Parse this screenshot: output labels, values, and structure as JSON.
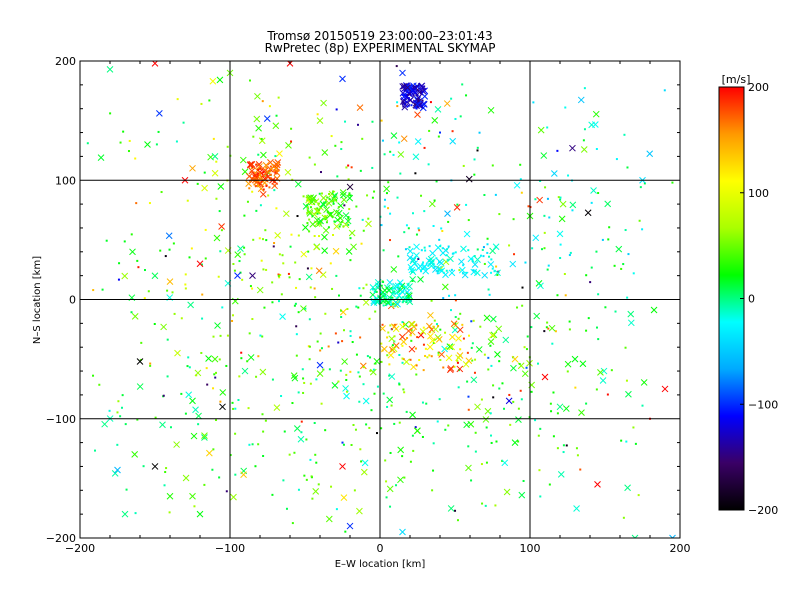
{
  "chart_data": {
    "type": "scatter",
    "title": "Tromsø 20150519 23:00:00–23:01:43",
    "subtitle": "RwPretec (8p) EXPERIMENTAL SKYMAP",
    "xlabel": "E–W location [km]",
    "ylabel": "N–S location [km]",
    "xlim": [
      -200,
      200
    ],
    "ylim": [
      -200,
      200
    ],
    "x_ticks": [
      "−200",
      "−100",
      "0",
      "100",
      "200"
    ],
    "y_ticks": [
      "−200",
      "−100",
      "0",
      "100",
      "200"
    ],
    "x_tick_values": [
      -200,
      -100,
      0,
      100,
      200
    ],
    "y_tick_values": [
      -200,
      -100,
      0,
      100,
      200
    ],
    "grid": true,
    "grid_values": [
      -100,
      0,
      100
    ],
    "marker_types": [
      "cross",
      "dot"
    ],
    "colorbar": {
      "label": "[m/s]",
      "range": [
        -200,
        200
      ],
      "tick_values": [
        -200,
        -100,
        0,
        100,
        200
      ],
      "tick_labels": [
        "−200",
        "−100",
        "0",
        "100",
        "200"
      ],
      "placement": "right",
      "colors": [
        "#000000",
        "#3a0066",
        "#0000ff",
        "#00aaff",
        "#00ffff",
        "#00ff00",
        "#aaff00",
        "#ffff00",
        "#ff9900",
        "#ff0000"
      ]
    },
    "clusters": [
      {
        "x": [
          -88,
          -68
        ],
        "y": [
          92,
          115
        ],
        "v": [
          150,
          200
        ]
      },
      {
        "x": [
          -5,
          20
        ],
        "y": [
          -5,
          15
        ],
        "v": [
          -40,
          20
        ]
      },
      {
        "x": [
          -50,
          -20
        ],
        "y": [
          60,
          90
        ],
        "v": [
          10,
          70
        ]
      },
      {
        "x": [
          15,
          30
        ],
        "y": [
          160,
          180
        ],
        "v": [
          -150,
          -100
        ]
      },
      {
        "x": [
          0,
          60
        ],
        "y": [
          -60,
          -20
        ],
        "v": [
          60,
          200
        ]
      },
      {
        "x": [
          20,
          80
        ],
        "y": [
          20,
          45
        ],
        "v": [
          -40,
          -10
        ]
      }
    ],
    "points": [
      {
        "x": -180,
        "y": 193,
        "v": 0,
        "m": "cross"
      },
      {
        "x": -150,
        "y": 198,
        "v": 200,
        "m": "cross"
      },
      {
        "x": -100,
        "y": 190,
        "v": 50,
        "m": "cross"
      },
      {
        "x": -60,
        "y": 198,
        "v": 200,
        "m": "cross"
      },
      {
        "x": -25,
        "y": 185,
        "v": -100,
        "m": "cross"
      },
      {
        "x": 15,
        "y": 190,
        "v": -100,
        "m": "cross"
      },
      {
        "x": 25,
        "y": 155,
        "v": 180,
        "m": "cross"
      },
      {
        "x": -155,
        "y": 130,
        "v": 20,
        "m": "cross"
      },
      {
        "x": -110,
        "y": 120,
        "v": 0,
        "m": "cross"
      },
      {
        "x": -40,
        "y": 150,
        "v": 60,
        "m": "cross"
      },
      {
        "x": 65,
        "y": 125,
        "v": -200,
        "m": "dot"
      },
      {
        "x": 100,
        "y": 70,
        "v": 30,
        "m": "cross"
      },
      {
        "x": 120,
        "y": 55,
        "v": -20,
        "m": "cross"
      },
      {
        "x": 175,
        "y": 100,
        "v": -40,
        "m": "cross"
      },
      {
        "x": 95,
        "y": 10,
        "v": -200,
        "m": "dot"
      },
      {
        "x": -165,
        "y": 40,
        "v": 20,
        "m": "cross"
      },
      {
        "x": -140,
        "y": 15,
        "v": 140,
        "m": "cross"
      },
      {
        "x": -120,
        "y": 30,
        "v": 200,
        "m": "cross"
      },
      {
        "x": -95,
        "y": 20,
        "v": -100,
        "m": "cross"
      },
      {
        "x": -160,
        "y": -52,
        "v": -200,
        "m": "cross"
      },
      {
        "x": -135,
        "y": -45,
        "v": 80,
        "m": "cross"
      },
      {
        "x": -110,
        "y": -50,
        "v": 40,
        "m": "cross"
      },
      {
        "x": -90,
        "y": -60,
        "v": 0,
        "m": "cross"
      },
      {
        "x": -105,
        "y": -90,
        "v": -200,
        "m": "cross"
      },
      {
        "x": -145,
        "y": -105,
        "v": 0,
        "m": "cross"
      },
      {
        "x": -125,
        "y": -85,
        "v": 20,
        "m": "cross"
      },
      {
        "x": -150,
        "y": -140,
        "v": -200,
        "m": "cross"
      },
      {
        "x": -175,
        "y": -143,
        "v": -60,
        "m": "cross"
      },
      {
        "x": -140,
        "y": -165,
        "v": 30,
        "m": "cross"
      },
      {
        "x": -125,
        "y": -165,
        "v": 40,
        "m": "cross"
      },
      {
        "x": -120,
        "y": -180,
        "v": 20,
        "m": "cross"
      },
      {
        "x": -170,
        "y": -180,
        "v": 0,
        "m": "cross"
      },
      {
        "x": -25,
        "y": -140,
        "v": 200,
        "m": "cross"
      },
      {
        "x": -20,
        "y": -190,
        "v": -100,
        "m": "cross"
      },
      {
        "x": 15,
        "y": -195,
        "v": -40,
        "m": "cross"
      },
      {
        "x": -2,
        "y": -112,
        "v": -200,
        "m": "dot"
      },
      {
        "x": 25,
        "y": -110,
        "v": 30,
        "m": "cross"
      },
      {
        "x": 65,
        "y": -90,
        "v": 60,
        "m": "cross"
      },
      {
        "x": 90,
        "y": -120,
        "v": 20,
        "m": "cross"
      },
      {
        "x": 110,
        "y": -65,
        "v": 200,
        "m": "cross"
      },
      {
        "x": 130,
        "y": -50,
        "v": 20,
        "m": "cross"
      },
      {
        "x": 120,
        "y": -90,
        "v": 0,
        "m": "cross"
      },
      {
        "x": 145,
        "y": -155,
        "v": 200,
        "m": "cross"
      },
      {
        "x": 190,
        "y": -75,
        "v": 200,
        "m": "cross"
      },
      {
        "x": 195,
        "y": -200,
        "v": -60,
        "m": "cross"
      },
      {
        "x": 170,
        "y": -200,
        "v": 0,
        "m": "cross"
      },
      {
        "x": -125,
        "y": 110,
        "v": 150,
        "m": "cross"
      },
      {
        "x": -130,
        "y": 100,
        "v": 200,
        "m": "cross"
      },
      {
        "x": -85,
        "y": 20,
        "v": -150,
        "m": "cross"
      },
      {
        "x": -55,
        "y": 70,
        "v": -200,
        "m": "dot"
      },
      {
        "x": -40,
        "y": -55,
        "v": -100,
        "m": "cross"
      },
      {
        "x": -25,
        "y": -120,
        "v": -100,
        "m": "dot"
      },
      {
        "x": 40,
        "y": 140,
        "v": -100,
        "m": "dot"
      },
      {
        "x": 45,
        "y": 72,
        "v": -60,
        "m": "cross"
      },
      {
        "x": 75,
        "y": -30,
        "v": 80,
        "m": "cross"
      },
      {
        "x": 90,
        "y": -50,
        "v": 130,
        "m": "cross"
      },
      {
        "x": 180,
        "y": -100,
        "v": 200,
        "m": "dot"
      }
    ]
  }
}
